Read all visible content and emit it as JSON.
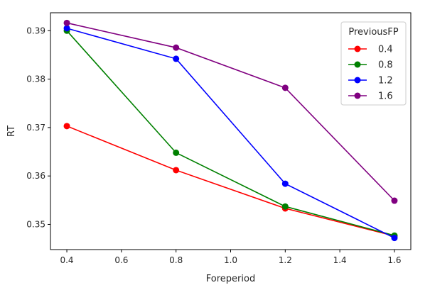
{
  "chart_data": {
    "type": "line",
    "xlabel": "Foreperiod",
    "ylabel": "RT",
    "x": [
      0.4,
      0.8,
      1.2,
      1.6
    ],
    "xlim": [
      0.34,
      1.66
    ],
    "ylim": [
      0.3448,
      0.3937
    ],
    "xticks": [
      0.4,
      0.6,
      0.8,
      1.0,
      1.2,
      1.4,
      1.6
    ],
    "xtick_labels": [
      "0.4",
      "0.6",
      "0.8",
      "1.0",
      "1.2",
      "1.4",
      "1.6"
    ],
    "yticks": [
      0.35,
      0.36,
      0.37,
      0.38,
      0.39
    ],
    "ytick_labels": [
      "0.35",
      "0.36",
      "0.37",
      "0.38",
      "0.39"
    ],
    "grid": false,
    "legend": {
      "title": "PreviousFP",
      "placement": "top-right"
    },
    "series": [
      {
        "name": "0.4",
        "color": "#ff0000",
        "values": [
          0.3703,
          0.3612,
          0.3533,
          0.3476
        ]
      },
      {
        "name": "0.8",
        "color": "#008000",
        "values": [
          0.39,
          0.3648,
          0.3537,
          0.3477
        ]
      },
      {
        "name": "1.2",
        "color": "#0000ff",
        "values": [
          0.3905,
          0.3842,
          0.3584,
          0.3472
        ]
      },
      {
        "name": "1.6",
        "color": "#800080",
        "values": [
          0.3916,
          0.3865,
          0.3782,
          0.3549
        ]
      }
    ]
  }
}
